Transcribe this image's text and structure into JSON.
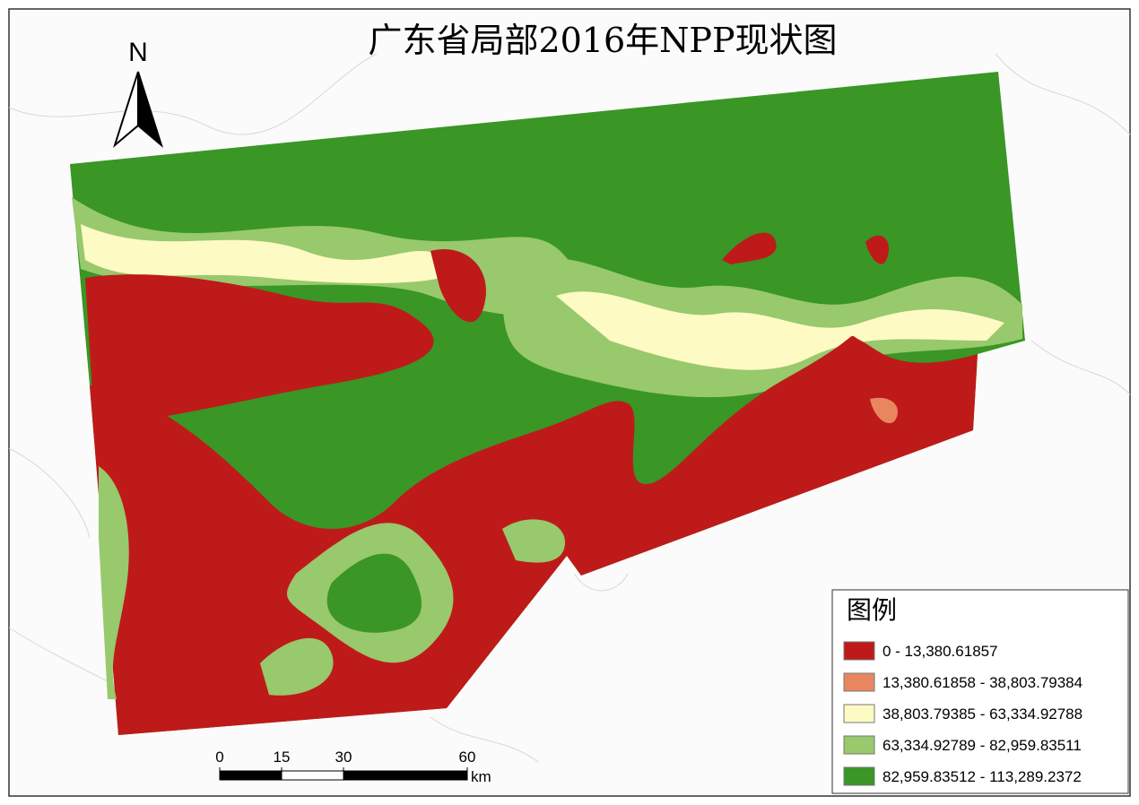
{
  "title": "广东省局部2016年NPP现状图",
  "north_arrow": "N",
  "scale_bar": {
    "ticks": [
      0,
      15,
      30,
      60
    ],
    "unit": "km"
  },
  "legend": {
    "title": "图例",
    "items": [
      {
        "label": "0 - 13,380.61857",
        "color": "#bf1a1a"
      },
      {
        "label": "13,380.61858 - 38,803.79384",
        "color": "#e8875f"
      },
      {
        "label": "38,803.79385 - 63,334.92788",
        "color": "#fdfac4"
      },
      {
        "label": "63,334.92789 - 82,959.83511",
        "color": "#98c96c"
      },
      {
        "label": "82,959.83512 - 113,289.2372",
        "color": "#3a9625"
      }
    ]
  }
}
